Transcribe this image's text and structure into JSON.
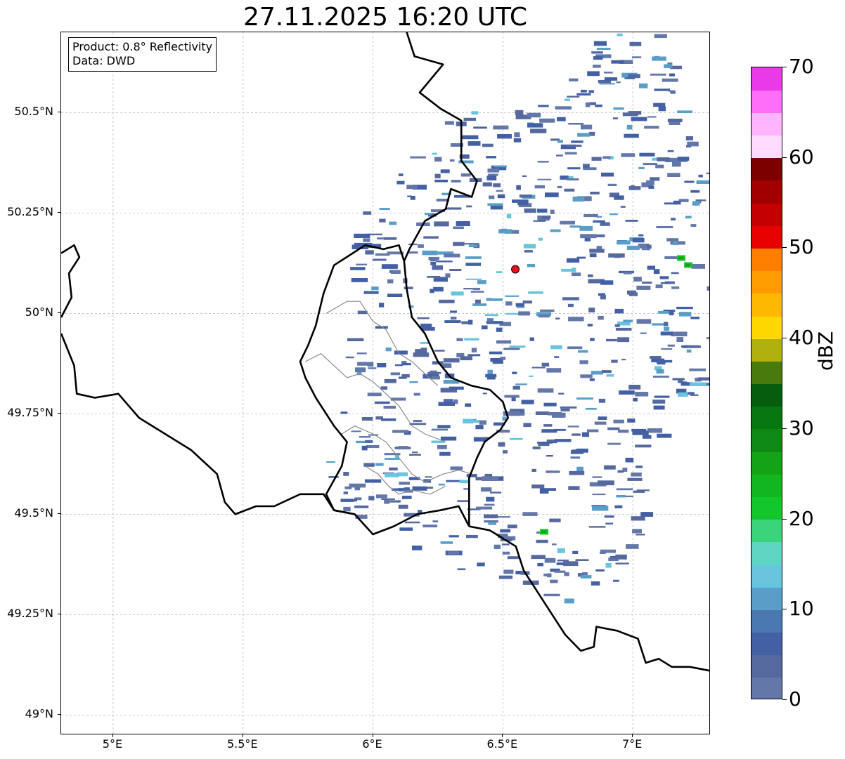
{
  "title": "27.11.2025 16:20 UTC",
  "info_box": {
    "product": "Product: 0.8° Reflectivity",
    "data_source": "Data: DWD"
  },
  "map": {
    "lon_range": [
      4.8,
      7.3
    ],
    "lat_range": [
      48.95,
      50.7
    ],
    "grid": true,
    "radar_site": {
      "lon": 6.548,
      "lat": 50.11,
      "color": "#e8101a"
    },
    "x_ticks": [
      {
        "lon": 5.0,
        "label": "5°E"
      },
      {
        "lon": 5.5,
        "label": "5.5°E"
      },
      {
        "lon": 6.0,
        "label": "6°E"
      },
      {
        "lon": 6.5,
        "label": "6.5°E"
      },
      {
        "lon": 7.0,
        "label": "7°E"
      }
    ],
    "y_ticks": [
      {
        "lat": 50.5,
        "label": "50.5°N"
      },
      {
        "lat": 50.25,
        "label": "50.25°N"
      },
      {
        "lat": 50.0,
        "label": "50°N"
      },
      {
        "lat": 49.75,
        "label": "49.75°N"
      },
      {
        "lat": 49.5,
        "label": "49.5°N"
      },
      {
        "lat": 49.25,
        "label": "49.25°N"
      },
      {
        "lat": 49.0,
        "label": "49°N"
      }
    ],
    "borders": [
      [
        [
          6.13,
          50.7
        ],
        [
          6.16,
          50.64
        ],
        [
          6.27,
          50.62
        ],
        [
          6.18,
          50.55
        ],
        [
          6.26,
          50.51
        ],
        [
          6.34,
          50.48
        ],
        [
          6.34,
          50.38
        ],
        [
          6.4,
          50.33
        ],
        [
          6.38,
          50.29
        ],
        [
          6.3,
          50.31
        ],
        [
          6.28,
          50.26
        ],
        [
          6.2,
          50.23
        ],
        [
          6.14,
          50.16
        ],
        [
          6.12,
          50.13
        ],
        [
          6.13,
          50.06
        ],
        [
          6.15,
          49.99
        ],
        [
          6.2,
          49.95
        ],
        [
          6.25,
          49.88
        ],
        [
          6.3,
          49.84
        ],
        [
          6.38,
          49.82
        ],
        [
          6.45,
          49.81
        ],
        [
          6.5,
          49.78
        ],
        [
          6.52,
          49.74
        ],
        [
          6.49,
          49.71
        ],
        [
          6.43,
          49.68
        ],
        [
          6.4,
          49.64
        ],
        [
          6.37,
          49.59
        ],
        [
          6.37,
          49.47
        ]
      ],
      [
        [
          6.37,
          49.47
        ],
        [
          6.33,
          49.52
        ],
        [
          6.26,
          49.51
        ],
        [
          6.17,
          49.5
        ],
        [
          6.08,
          49.47
        ],
        [
          6.0,
          49.45
        ],
        [
          5.93,
          49.5
        ],
        [
          5.85,
          49.51
        ],
        [
          5.82,
          49.55
        ],
        [
          5.88,
          49.62
        ],
        [
          5.9,
          49.68
        ],
        [
          5.85,
          49.72
        ],
        [
          5.78,
          49.79
        ],
        [
          5.74,
          49.84
        ],
        [
          5.72,
          49.88
        ],
        [
          5.75,
          49.92
        ],
        [
          5.78,
          49.97
        ],
        [
          5.81,
          50.05
        ],
        [
          5.85,
          50.12
        ],
        [
          5.97,
          50.17
        ],
        [
          6.04,
          50.16
        ],
        [
          6.1,
          50.17
        ],
        [
          6.12,
          50.13
        ]
      ],
      [
        [
          5.93,
          49.5
        ],
        [
          5.85,
          49.51
        ],
        [
          5.81,
          49.55
        ],
        [
          5.72,
          49.55
        ],
        [
          5.62,
          49.52
        ],
        [
          5.55,
          49.52
        ],
        [
          5.47,
          49.5
        ],
        [
          5.43,
          49.53
        ],
        [
          5.4,
          49.6
        ],
        [
          5.35,
          49.63
        ],
        [
          5.3,
          49.66
        ],
        [
          5.2,
          49.7
        ],
        [
          5.1,
          49.74
        ],
        [
          5.02,
          49.8
        ],
        [
          4.93,
          49.79
        ],
        [
          4.86,
          49.8
        ],
        [
          4.85,
          49.87
        ],
        [
          4.8,
          49.95
        ]
      ],
      [
        [
          6.37,
          49.47
        ],
        [
          6.45,
          49.46
        ],
        [
          6.55,
          49.42
        ],
        [
          6.58,
          49.36
        ],
        [
          6.62,
          49.32
        ],
        [
          6.68,
          49.26
        ],
        [
          6.74,
          49.2
        ],
        [
          6.8,
          49.16
        ],
        [
          6.85,
          49.17
        ],
        [
          6.86,
          49.22
        ],
        [
          6.94,
          49.21
        ],
        [
          7.02,
          49.19
        ],
        [
          7.05,
          49.13
        ],
        [
          7.1,
          49.14
        ],
        [
          7.15,
          49.12
        ],
        [
          7.22,
          49.12
        ],
        [
          7.3,
          49.11
        ]
      ],
      [
        [
          4.8,
          50.15
        ],
        [
          4.85,
          50.17
        ],
        [
          4.87,
          50.14
        ],
        [
          4.83,
          50.1
        ],
        [
          4.84,
          50.04
        ],
        [
          4.8,
          49.99
        ]
      ]
    ],
    "admin_lines": [
      [
        [
          5.82,
          50.0
        ],
        [
          5.9,
          50.03
        ],
        [
          5.95,
          50.03
        ],
        [
          6.0,
          49.98
        ],
        [
          6.05,
          49.96
        ],
        [
          6.1,
          49.9
        ],
        [
          6.15,
          49.88
        ],
        [
          6.2,
          49.85
        ],
        [
          6.25,
          49.82
        ]
      ],
      [
        [
          5.74,
          49.88
        ],
        [
          5.8,
          49.9
        ],
        [
          5.85,
          49.87
        ],
        [
          5.9,
          49.84
        ],
        [
          5.95,
          49.85
        ],
        [
          6.0,
          49.83
        ],
        [
          6.05,
          49.8
        ],
        [
          6.1,
          49.77
        ],
        [
          6.15,
          49.72
        ],
        [
          6.2,
          49.7
        ],
        [
          6.28,
          49.68
        ]
      ],
      [
        [
          5.88,
          49.7
        ],
        [
          5.93,
          49.72
        ],
        [
          6.0,
          49.7
        ],
        [
          6.05,
          49.68
        ],
        [
          6.1,
          49.64
        ],
        [
          6.15,
          49.6
        ],
        [
          6.2,
          49.58
        ],
        [
          6.27,
          49.6
        ],
        [
          6.33,
          49.61
        ],
        [
          6.38,
          49.6
        ]
      ],
      [
        [
          5.97,
          49.62
        ],
        [
          6.02,
          49.6
        ],
        [
          6.06,
          49.57
        ],
        [
          6.1,
          49.55
        ],
        [
          6.15,
          49.56
        ],
        [
          6.22,
          49.55
        ],
        [
          6.28,
          49.57
        ]
      ]
    ]
  },
  "colorbar": {
    "label": "dBZ",
    "min": 0,
    "max": 70,
    "step": 2.5,
    "ticks": [
      "0",
      "10",
      "20",
      "30",
      "40",
      "50",
      "60",
      "70"
    ],
    "colors": [
      "#6477a9",
      "#55699f",
      "#4460a4",
      "#4a78b1",
      "#589ec8",
      "#69c4de",
      "#5fd6c4",
      "#3bd47a",
      "#12c72c",
      "#12b61e",
      "#14a317",
      "#0e8a14",
      "#077710",
      "#075d0e",
      "#487a0e",
      "#aeb10e",
      "#ffd800",
      "#ffb800",
      "#ff9c00",
      "#ff7e00",
      "#e80000",
      "#c40000",
      "#a20000",
      "#7d0000",
      "#ffdcff",
      "#ffb4ff",
      "#ff6ef8",
      "#ea3ae8"
    ]
  }
}
